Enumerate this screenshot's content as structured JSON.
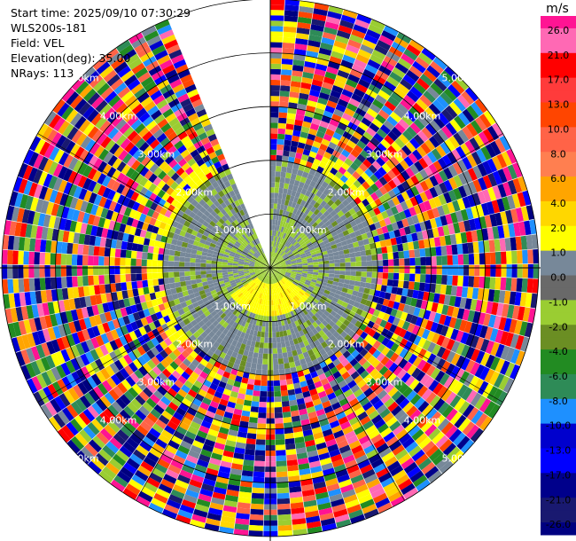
{
  "header": {
    "start_time": "Start time: 2025/09/10 07:30:29",
    "instrument": "WLS200s-181",
    "field": "Field: VEL",
    "elevation": "Elevation(deg): 35.00",
    "nrays": "NRays: 113"
  },
  "chart_data": {
    "type": "heatmap",
    "projection": "polar (PPI)",
    "colorbar": {
      "unit": "m/s",
      "ticks": [
        "26.0",
        "21.0",
        "17.0",
        "13.0",
        "10.0",
        "8.0",
        "6.0",
        "4.0",
        "2.0",
        "1.0",
        "0.0",
        "-1.0",
        "-2.0",
        "-4.0",
        "-6.0",
        "-8.0",
        "-10.0",
        "-13.0",
        "-17.0",
        "-21.0",
        "-26.0",
        "-30.0"
      ],
      "colors": [
        "#ff1493",
        "#ff69b4",
        "#ff0000",
        "#ff3b3b",
        "#ff4500",
        "#ff6347",
        "#ff7f50",
        "#ffa500",
        "#ffd700",
        "#ffff00",
        "#778899",
        "#696969",
        "#9acd32",
        "#6b8e23",
        "#228b22",
        "#2e8b57",
        "#1e90ff",
        "#0000cd",
        "#0000ff",
        "#00008b",
        "#191970",
        "#000080"
      ]
    },
    "range_rings_km": [
      1,
      2,
      3,
      4,
      5
    ],
    "range_labels": [
      "1.00km",
      "2.00km",
      "3.00km",
      "4.00km",
      "5.00km"
    ],
    "max_range_km": 5,
    "missing_sector_deg": [
      -22,
      0
    ],
    "near_field_wind": {
      "inner_gray_max_km": 2.0,
      "yellow_ring_km": [
        0.9,
        2.3
      ]
    }
  }
}
